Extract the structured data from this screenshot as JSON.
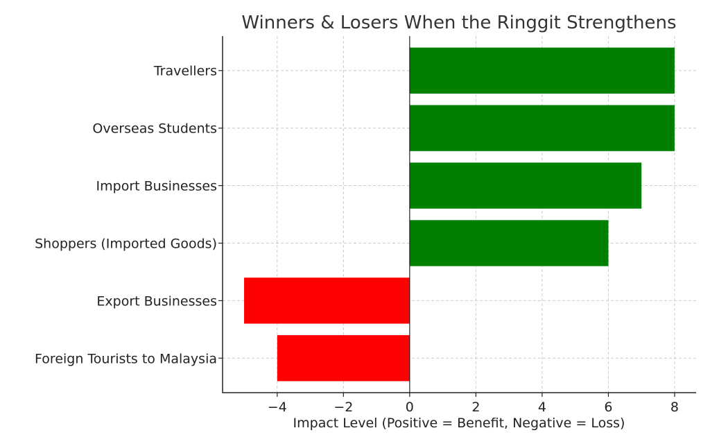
{
  "chart_data": {
    "type": "bar",
    "orientation": "horizontal",
    "title": "Winners & Losers When the Ringgit Strengthens",
    "xlabel": "Impact Level (Positive = Benefit, Negative = Loss)",
    "ylabel": "",
    "categories": [
      "Travellers",
      "Overseas Students",
      "Import Businesses",
      "Shoppers (Imported Goods)",
      "Export Businesses",
      "Foreign Tourists to Malaysia"
    ],
    "values": [
      8,
      8,
      7,
      6,
      -5,
      -4
    ],
    "xlim": [
      -5.65,
      8.65
    ],
    "xticks": [
      -4,
      -2,
      0,
      2,
      4,
      6,
      8
    ],
    "xtick_labels": [
      "−4",
      "−2",
      "0",
      "2",
      "4",
      "6",
      "8"
    ],
    "colors": {
      "positive": "#008000",
      "negative": "#ff0000"
    },
    "grid": true,
    "legend": "none"
  }
}
